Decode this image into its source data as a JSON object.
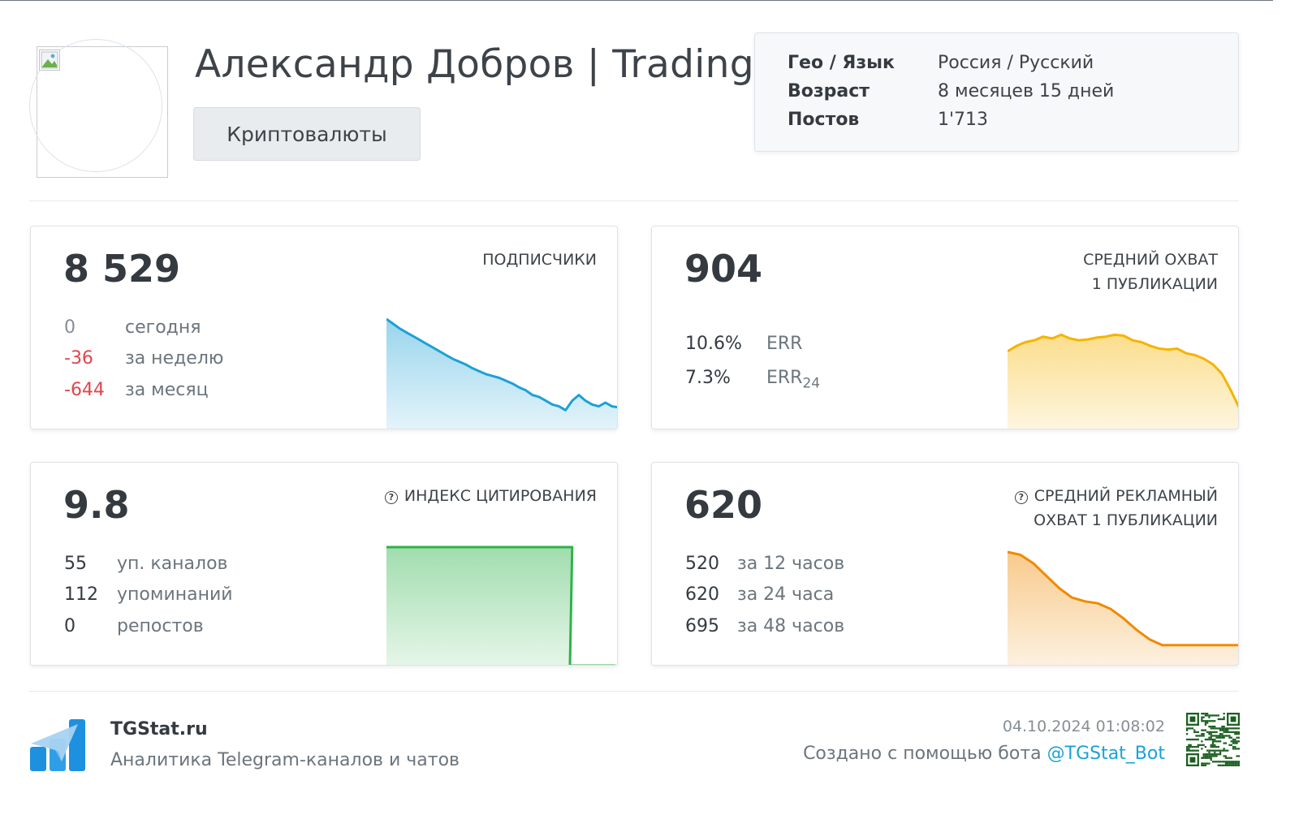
{
  "header": {
    "channel_title": "Александр Добров | Trading",
    "category": "Криптовалюты"
  },
  "info": {
    "rows": [
      {
        "key": "Гео / Язык",
        "value": "Россия / Русский"
      },
      {
        "key": "Возраст",
        "value": "8 месяцев 15 дней"
      },
      {
        "key": "Постов",
        "value": "1'713"
      }
    ]
  },
  "subscribers": {
    "value": "8 529",
    "label": "ПОДПИСЧИКИ",
    "rows": [
      {
        "num": "0",
        "text": "сегодня"
      },
      {
        "num": "-36",
        "text": "за неделю"
      },
      {
        "num": "-644",
        "text": "за месяц"
      }
    ],
    "color": "#1da1d6",
    "trend": [
      100,
      95,
      90,
      86,
      82,
      78,
      74,
      70,
      66,
      62,
      58,
      55,
      52,
      48,
      45,
      42,
      40,
      38,
      35,
      32,
      28,
      25,
      20,
      18,
      14,
      10,
      8,
      4,
      14,
      20,
      14,
      10,
      8,
      12,
      8,
      7
    ]
  },
  "reach": {
    "value": "904",
    "label_line1": "СРЕДНИЙ ОХВАТ",
    "label_line2": "1 ПУБЛИКАЦИИ",
    "err_value": "10.6%",
    "err_label": "ERR",
    "err24_value": "7.3%",
    "err24_label": "ERR",
    "err24_sub": "24",
    "color": "#f5b400",
    "trend": [
      72,
      78,
      82,
      84,
      88,
      86,
      90,
      86,
      84,
      85,
      87,
      88,
      90,
      89,
      84,
      82,
      78,
      75,
      74,
      75,
      70,
      68,
      64,
      58,
      48,
      30,
      10
    ]
  },
  "citation": {
    "value": "9.8",
    "label": "ИНДЕКС ЦИТИРОВАНИЯ",
    "help": "?",
    "rows": [
      {
        "num": "55",
        "text": "уп. каналов"
      },
      {
        "num": "112",
        "text": "упоминаний"
      },
      {
        "num": "0",
        "text": "репостов"
      }
    ],
    "color": "#2eb34a",
    "trend": [
      100,
      100,
      100,
      100,
      100,
      100,
      100,
      100,
      100,
      100,
      100,
      100,
      100,
      100,
      100,
      100,
      100,
      0,
      0,
      0,
      0
    ]
  },
  "ad_reach": {
    "value": "620",
    "label_line1": "СРЕДНИЙ РЕКЛАМНЫЙ",
    "label_line2": "ОХВАТ 1 ПУБЛИКАЦИИ",
    "help": "?",
    "rows": [
      {
        "num": "520",
        "text": "за 12 часов"
      },
      {
        "num": "620",
        "text": "за 24 часа"
      },
      {
        "num": "695",
        "text": "за 48 часов"
      }
    ],
    "color": "#f08a00",
    "trend": [
      100,
      97,
      88,
      75,
      62,
      52,
      48,
      46,
      40,
      30,
      18,
      8,
      2,
      2,
      2,
      2,
      2,
      2,
      2
    ]
  },
  "footer": {
    "brand": "TGStat.ru",
    "tagline": "Аналитика Telegram-каналов и чатов",
    "timestamp": "04.10.2024 01:08:02",
    "created_prefix": "Создано с помощью бота ",
    "bot_link": "@TGStat_Bot"
  }
}
